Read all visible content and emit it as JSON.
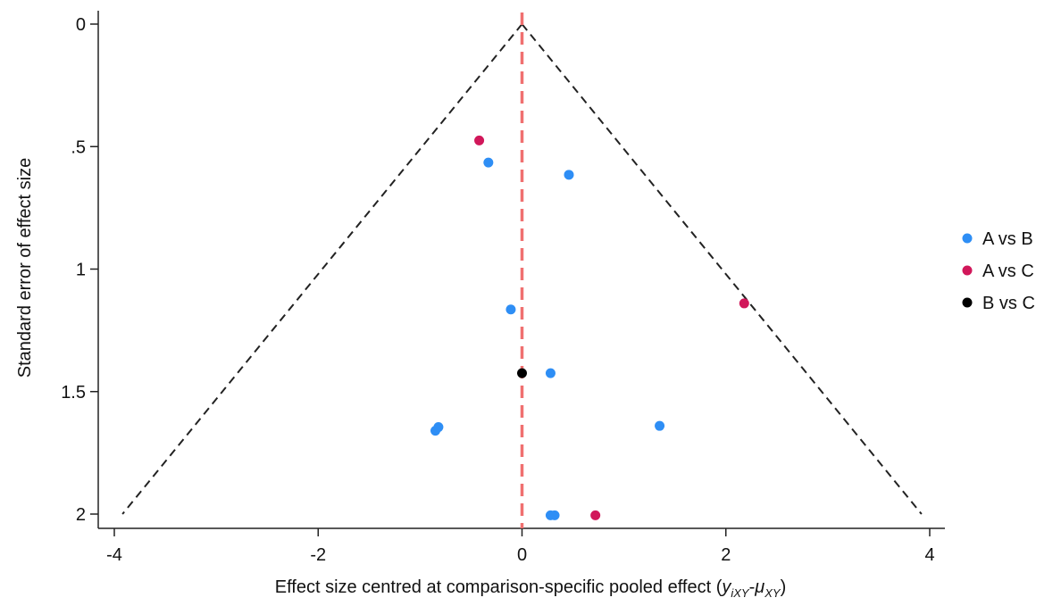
{
  "chart_data": {
    "type": "scatter",
    "title": "",
    "xlabel": "Effect size centred at comparison-specific pooled effect (",
    "xlabel_math": {
      "y": "y",
      "y_sub": "iXY",
      "dash": "-",
      "mu": "μ",
      "mu_sub": "XY",
      "close": ")"
    },
    "ylabel": "Standard error of effect size",
    "xlim": [
      -4,
      4
    ],
    "ylim": [
      0,
      2
    ],
    "y_reversed": true,
    "x_ticks": [
      {
        "value": -4,
        "label": "-4"
      },
      {
        "value": -2,
        "label": "-2"
      },
      {
        "value": 0,
        "label": "0"
      },
      {
        "value": 2,
        "label": "2"
      },
      {
        "value": 4,
        "label": "4"
      }
    ],
    "y_ticks": [
      {
        "value": 0,
        "label": "0"
      },
      {
        "value": 0.5,
        "label": ".5"
      },
      {
        "value": 1,
        "label": "1"
      },
      {
        "value": 1.5,
        "label": "1.5"
      },
      {
        "value": 2,
        "label": "2"
      }
    ],
    "grid": false,
    "legend_position": "right",
    "funnel": {
      "apex": [
        0,
        0
      ],
      "left_base": [
        -3.92,
        2
      ],
      "right_base": [
        3.92,
        2
      ],
      "color": "#222222",
      "style": "dashed"
    },
    "reference_line": {
      "x": 0,
      "color": "#f07070",
      "style": "dashed"
    },
    "series": [
      {
        "name": "A vs B",
        "color": "#2e8ef5",
        "points": [
          {
            "x": -0.33,
            "y": 0.565
          },
          {
            "x": 0.46,
            "y": 0.615
          },
          {
            "x": -0.11,
            "y": 1.165
          },
          {
            "x": 0.28,
            "y": 1.425
          },
          {
            "x": -0.85,
            "y": 1.66
          },
          {
            "x": -0.82,
            "y": 1.645
          },
          {
            "x": 1.35,
            "y": 1.64
          },
          {
            "x": 0.28,
            "y": 2.005
          },
          {
            "x": 0.32,
            "y": 2.005
          }
        ]
      },
      {
        "name": "A vs C",
        "color": "#d1175a",
        "points": [
          {
            "x": -0.42,
            "y": 0.475
          },
          {
            "x": 2.18,
            "y": 1.14
          },
          {
            "x": 0.72,
            "y": 2.005
          }
        ]
      },
      {
        "name": "B vs C",
        "color": "#000000",
        "points": [
          {
            "x": 0.0,
            "y": 1.425
          }
        ]
      }
    ]
  }
}
